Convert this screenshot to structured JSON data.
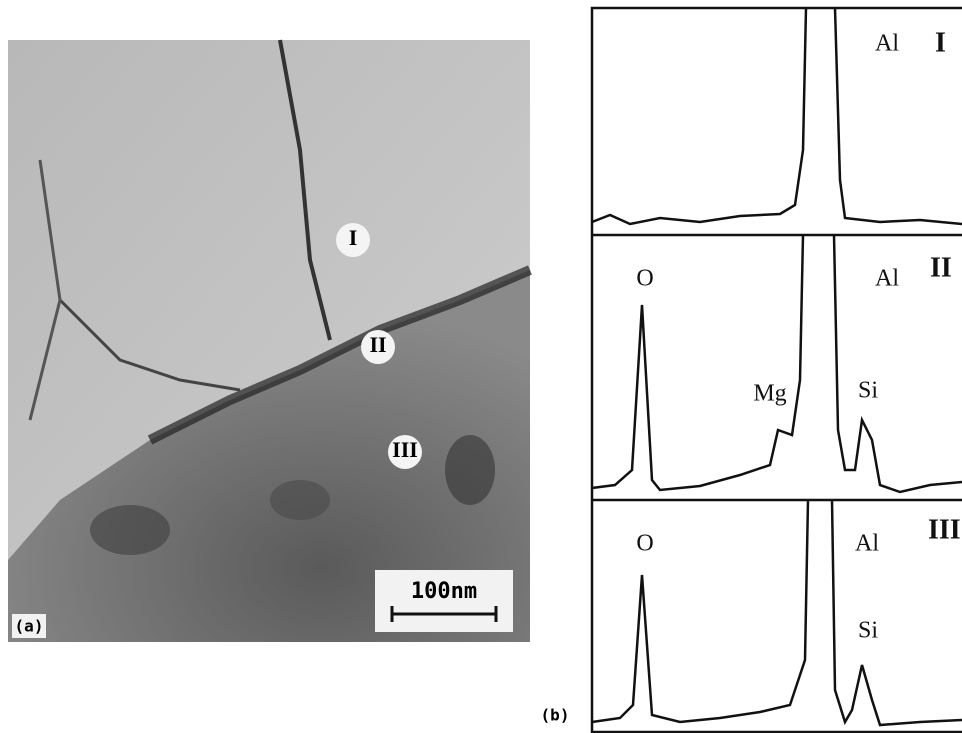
{
  "figure": {
    "micrograph": {
      "label": "(a)",
      "scale_bar": "100nm",
      "points": [
        "I",
        "II",
        "III"
      ]
    },
    "spectra": {
      "label": "(b)",
      "panels": [
        {
          "id": "I",
          "peaks": [
            "Al"
          ]
        },
        {
          "id": "II",
          "peaks": [
            "O",
            "Al",
            "Mg",
            "Si"
          ]
        },
        {
          "id": "III",
          "peaks": [
            "O",
            "Al",
            "Si"
          ]
        }
      ]
    }
  }
}
